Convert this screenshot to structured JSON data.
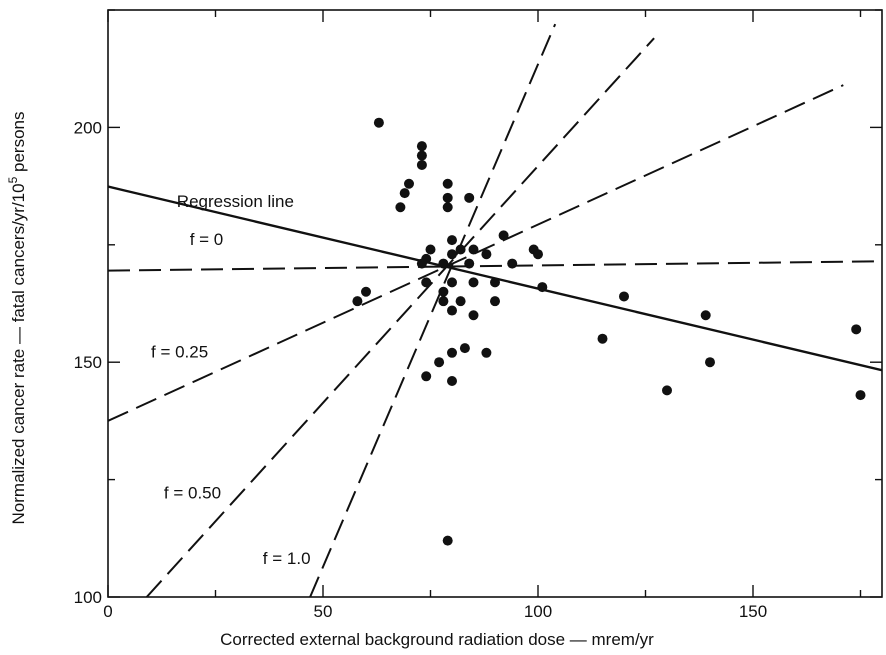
{
  "chart_data": {
    "type": "scatter",
    "title": "",
    "xlabel": "Corrected external background radiation dose — mrem/yr",
    "ylabel_parts": [
      "Normalized cancer rate — fatal cancers/yr/10",
      "5",
      " persons"
    ],
    "xlim": [
      0,
      180
    ],
    "ylim": [
      100,
      225
    ],
    "x_ticks": [
      0,
      50,
      100,
      150
    ],
    "y_ticks": [
      100,
      150,
      200
    ],
    "grid": false,
    "points": [
      [
        63,
        201
      ],
      [
        73,
        196
      ],
      [
        73,
        194
      ],
      [
        73,
        192
      ],
      [
        70,
        188
      ],
      [
        69,
        186
      ],
      [
        68,
        183
      ],
      [
        79,
        188
      ],
      [
        79,
        185
      ],
      [
        79,
        183
      ],
      [
        84,
        185
      ],
      [
        80,
        176
      ],
      [
        85,
        174
      ],
      [
        82,
        174
      ],
      [
        75,
        174
      ],
      [
        74,
        172
      ],
      [
        80,
        173
      ],
      [
        88,
        173
      ],
      [
        92,
        177
      ],
      [
        99,
        174
      ],
      [
        100,
        173
      ],
      [
        73,
        171
      ],
      [
        78,
        171
      ],
      [
        84,
        171
      ],
      [
        94,
        171
      ],
      [
        74,
        167
      ],
      [
        80,
        167
      ],
      [
        85,
        167
      ],
      [
        90,
        167
      ],
      [
        60,
        165
      ],
      [
        58,
        163
      ],
      [
        78,
        165
      ],
      [
        78,
        163
      ],
      [
        82,
        163
      ],
      [
        90,
        163
      ],
      [
        101,
        166
      ],
      [
        80,
        161
      ],
      [
        85,
        160
      ],
      [
        74,
        147
      ],
      [
        77,
        150
      ],
      [
        80,
        152
      ],
      [
        83,
        153
      ],
      [
        88,
        152
      ],
      [
        80,
        146
      ],
      [
        79,
        112
      ],
      [
        115,
        155
      ],
      [
        120,
        164
      ],
      [
        130,
        144
      ],
      [
        139,
        160
      ],
      [
        140,
        150
      ],
      [
        174,
        157
      ],
      [
        175,
        143
      ]
    ],
    "lines": [
      {
        "name": "Regression line",
        "style": "solid",
        "points": [
          [
            0,
            187.4
          ],
          [
            180,
            148.3
          ]
        ]
      },
      {
        "name": "f = 0",
        "style": "dashed",
        "points": [
          [
            0,
            169.5
          ],
          [
            180,
            171.5
          ]
        ]
      },
      {
        "name": "f = 0.25",
        "style": "dashed",
        "points": [
          [
            0,
            137.5
          ],
          [
            171,
            209
          ]
        ]
      },
      {
        "name": "f = 0.50",
        "style": "dashed",
        "points": [
          [
            9,
            100
          ],
          [
            127,
            219
          ]
        ]
      },
      {
        "name": "f = 1.0",
        "style": "dashed",
        "points": [
          [
            47,
            100
          ],
          [
            104,
            222
          ]
        ]
      }
    ],
    "annotations": [
      {
        "text": "Regression line",
        "x": 16,
        "y": 183
      },
      {
        "text": "f = 0",
        "x": 19,
        "y": 175
      },
      {
        "text": "f = 0.25",
        "x": 10,
        "y": 151
      },
      {
        "text": "f = 0.50",
        "x": 13,
        "y": 121
      },
      {
        "text": "f = 1.0",
        "x": 36,
        "y": 107
      }
    ]
  }
}
